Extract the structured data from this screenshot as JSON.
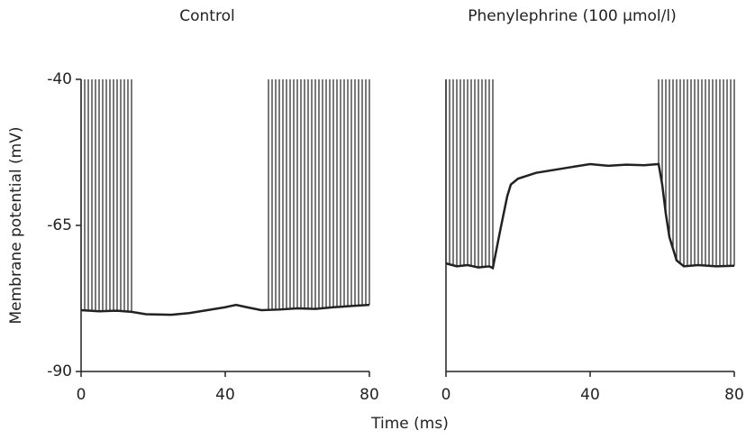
{
  "chart_data": [
    {
      "type": "line",
      "title": "Control",
      "ylabel": "Membrane potential (mV)",
      "xlabel": "Time (ms)",
      "xlim": [
        0,
        80
      ],
      "xticks": [
        0,
        40,
        80
      ],
      "ylim": [
        -90,
        -40
      ],
      "yticks": [
        -90,
        -65,
        -40
      ],
      "color": "#222222",
      "x": [
        0,
        5,
        10,
        14,
        18,
        25,
        30,
        35,
        40,
        43,
        46,
        50,
        55,
        60,
        65,
        70,
        75,
        80
      ],
      "values": [
        -79.5,
        -79.7,
        -79.6,
        -79.8,
        -80.2,
        -80.3,
        -80,
        -79.5,
        -79,
        -78.6,
        -79,
        -79.5,
        -79.4,
        -79.2,
        -79.3,
        -79,
        -78.8,
        -78.6
      ],
      "spike_x": [
        0,
        1,
        2,
        3,
        4,
        5,
        6,
        7,
        8,
        9,
        10,
        11,
        12,
        13,
        14,
        52,
        53,
        54,
        55,
        56,
        57,
        58,
        59,
        60,
        61,
        62,
        63,
        64,
        65,
        66,
        67,
        68,
        69,
        70,
        71,
        72,
        73,
        74,
        75,
        76,
        77,
        78,
        79,
        80
      ]
    },
    {
      "type": "line",
      "title": "Phenylephrine (100 μmol/l)",
      "xlim": [
        0,
        80
      ],
      "xticks": [
        0,
        40,
        80
      ],
      "ylim": [
        -90,
        -40
      ],
      "color": "#222222",
      "x": [
        0,
        3,
        6,
        9,
        12,
        13,
        15,
        17,
        18,
        20,
        25,
        30,
        35,
        40,
        45,
        50,
        55,
        59,
        60,
        61,
        62,
        64,
        66,
        70,
        75,
        80
      ],
      "values": [
        -71.5,
        -72,
        -71.8,
        -72.2,
        -72,
        -72.3,
        -66,
        -60,
        -58,
        -57,
        -56,
        -55.5,
        -55,
        -54.5,
        -54.8,
        -54.6,
        -54.7,
        -54.5,
        -58,
        -63,
        -67,
        -71,
        -72,
        -71.8,
        -72,
        -71.9
      ],
      "spike_x": [
        0,
        1,
        2,
        3,
        4,
        5,
        6,
        7,
        8,
        9,
        10,
        11,
        12,
        13,
        59,
        60,
        61,
        62,
        63,
        64,
        65,
        66,
        67,
        68,
        69,
        70,
        71,
        72,
        73,
        74,
        75,
        76,
        77,
        78,
        79,
        80
      ]
    }
  ]
}
